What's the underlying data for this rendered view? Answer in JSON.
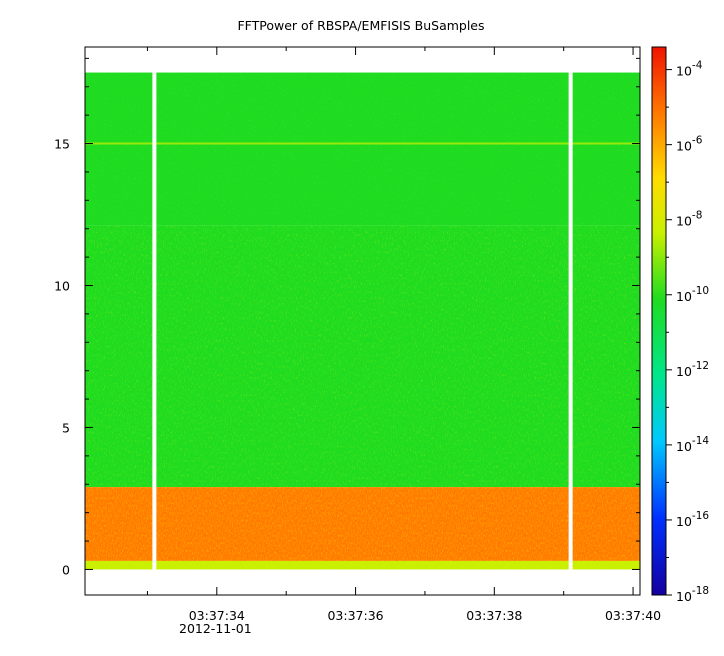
{
  "chart_data": {
    "type": "heatmap",
    "title": "FFTPower of RBSPA/EMFISIS  BuSamples",
    "xlabel": "",
    "ylabel": "",
    "x_date_label": "2012-11-01",
    "x_ticks": [
      "03:37:34",
      "03:37:36",
      "03:37:38",
      "03:37:40"
    ],
    "y_ticks": [
      "0",
      "5",
      "10",
      "15"
    ],
    "ylim": [
      -0.9,
      18.4
    ],
    "xlim_seconds": [
      32.1,
      40.1
    ],
    "colorbar": {
      "scale": "log",
      "range": [
        "1e-18",
        "4e-4"
      ],
      "tick_base": "10",
      "tick_exponents": [
        "-4",
        "-6",
        "-8",
        "-10",
        "-12",
        "-14",
        "-16",
        "-18"
      ]
    },
    "data_x_range_seconds": [
      32.1,
      40.1
    ],
    "data_y_range": [
      0.0,
      17.5
    ],
    "data_gaps_seconds": [
      33.1,
      39.1
    ],
    "bands": [
      {
        "y_range": [
          12.1,
          17.5
        ],
        "log10_power": -11.0
      },
      {
        "y_range": [
          2.9,
          12.1
        ],
        "log10_power": -10.0
      },
      {
        "y_range": [
          0.3,
          2.9
        ],
        "log10_power": -6.0
      },
      {
        "y_range": [
          0.0,
          0.3
        ],
        "log10_power": -8.0
      }
    ],
    "line_features": [
      {
        "y": 15.0,
        "log10_power": -9.5
      }
    ]
  },
  "colors": {
    "background": "#ffffff",
    "frame": "#000000",
    "colormap": [
      "#1400a0",
      "#0030ff",
      "#00c8ff",
      "#00e68c",
      "#20dc20",
      "#c8f000",
      "#ffdc00",
      "#ff7800",
      "#f01400"
    ]
  }
}
